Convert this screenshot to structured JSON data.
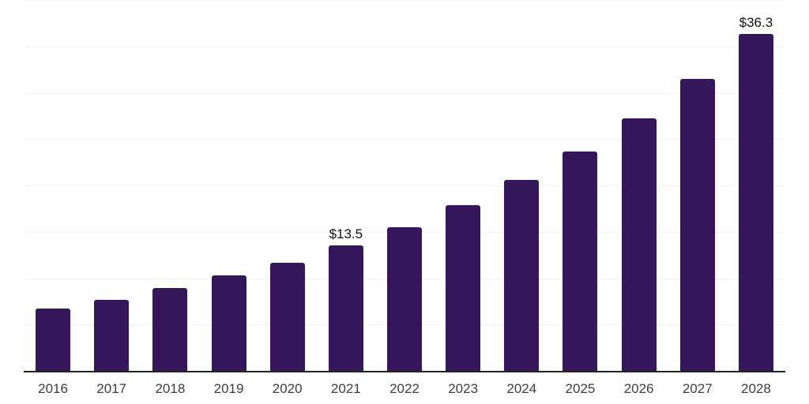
{
  "chart_data": {
    "type": "bar",
    "title": "",
    "xlabel": "",
    "ylabel": "",
    "categories": [
      "2016",
      "2017",
      "2018",
      "2019",
      "2020",
      "2021",
      "2022",
      "2023",
      "2024",
      "2025",
      "2026",
      "2027",
      "2028"
    ],
    "values": [
      6.7,
      7.7,
      8.9,
      10.3,
      11.7,
      13.5,
      15.5,
      17.9,
      20.6,
      23.7,
      27.2,
      31.5,
      36.3
    ],
    "data_labels": [
      {
        "category": "2021",
        "text": "$13.5"
      },
      {
        "category": "2028",
        "text": "$36.3"
      }
    ],
    "ylim": [
      0,
      40
    ],
    "gridline_step": 5,
    "grid": "horizontal",
    "legend": "none",
    "y_tick_labels_shown": false,
    "colors": {
      "bar": "#35165A",
      "axis_line": "#222222",
      "gridline": "#f0f0f0",
      "x_tick_label": "#3d3d3d",
      "value_label": "#111111",
      "background": "#ffffff"
    }
  }
}
